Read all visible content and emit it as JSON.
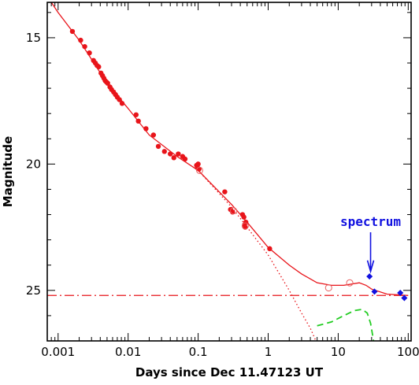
{
  "chart_data": {
    "type": "scatter",
    "title": "",
    "xlabel": "Days since Dec 11.47123 UT",
    "ylabel": "Magnitude",
    "xscale": "log",
    "xlim": [
      0.0007,
      110
    ],
    "ylim": [
      27,
      13.6
    ],
    "y_inverted": true,
    "grid": false,
    "xticks": [
      {
        "value": 0.001,
        "label": "0.001"
      },
      {
        "value": 0.01,
        "label": "0.01"
      },
      {
        "value": 0.1,
        "label": "0.1"
      },
      {
        "value": 1,
        "label": "1"
      },
      {
        "value": 10,
        "label": "10"
      },
      {
        "value": 100,
        "label": "100"
      }
    ],
    "yticks": [
      {
        "value": 15,
        "label": "15"
      },
      {
        "value": 20,
        "label": "20"
      },
      {
        "value": 25,
        "label": "25"
      }
    ],
    "colors": {
      "afterglow": "#e8141a",
      "open": "#e86060",
      "blue": "#1010e0",
      "green": "#22cc22"
    },
    "series": [
      {
        "marker": "filled-circle",
        "color": "#e8141a",
        "points": [
          [
            0.0016,
            14.75
          ],
          [
            0.0021,
            15.1
          ],
          [
            0.0024,
            15.35
          ],
          [
            0.0028,
            15.6
          ],
          [
            0.0032,
            15.9
          ],
          [
            0.0034,
            16.0
          ],
          [
            0.0036,
            16.1
          ],
          [
            0.0038,
            16.15
          ],
          [
            0.0041,
            16.4
          ],
          [
            0.0043,
            16.5
          ],
          [
            0.0045,
            16.6
          ],
          [
            0.0047,
            16.7
          ],
          [
            0.0049,
            16.75
          ],
          [
            0.0051,
            16.8
          ],
          [
            0.0055,
            16.95
          ],
          [
            0.0058,
            17.05
          ],
          [
            0.0062,
            17.15
          ],
          [
            0.0066,
            17.25
          ],
          [
            0.007,
            17.35
          ],
          [
            0.0075,
            17.45
          ],
          [
            0.0082,
            17.6
          ],
          [
            0.013,
            18.05
          ],
          [
            0.014,
            18.3
          ],
          [
            0.018,
            18.6
          ],
          [
            0.023,
            18.85
          ],
          [
            0.027,
            19.3
          ],
          [
            0.033,
            19.5
          ],
          [
            0.04,
            19.6
          ],
          [
            0.045,
            19.75
          ],
          [
            0.052,
            19.6
          ],
          [
            0.06,
            19.7
          ],
          [
            0.065,
            19.8
          ],
          [
            0.095,
            20.05
          ],
          [
            0.098,
            20.15
          ],
          [
            0.1,
            20.0
          ],
          [
            0.103,
            20.2
          ],
          [
            0.24,
            21.1
          ],
          [
            0.29,
            21.8
          ],
          [
            0.31,
            21.9
          ],
          [
            0.43,
            22.0
          ],
          [
            0.45,
            22.1
          ],
          [
            0.46,
            22.4
          ],
          [
            0.47,
            22.5
          ],
          [
            0.48,
            22.3
          ],
          [
            1.05,
            23.35
          ]
        ]
      },
      {
        "marker": "open-circle",
        "color": "#e86060",
        "points": [
          [
            0.105,
            20.25
          ],
          [
            0.32,
            21.85
          ],
          [
            0.47,
            22.45
          ],
          [
            7.3,
            24.9
          ],
          [
            14.6,
            24.7
          ]
        ]
      },
      {
        "marker": "filled-diamond",
        "color": "#1010e0",
        "points": [
          [
            28.0,
            24.45
          ],
          [
            33.0,
            25.05
          ],
          [
            77.0,
            25.1
          ],
          [
            88.0,
            25.3
          ]
        ]
      }
    ],
    "curves": [
      {
        "style": "solid",
        "color": "#e8141a",
        "points": [
          [
            0.0008,
            13.6
          ],
          [
            0.001,
            14.0
          ],
          [
            0.002,
            15.1
          ],
          [
            0.005,
            16.8
          ],
          [
            0.01,
            17.8
          ],
          [
            0.02,
            18.85
          ],
          [
            0.05,
            19.7
          ],
          [
            0.1,
            20.25
          ],
          [
            0.2,
            21.1
          ],
          [
            0.3,
            21.6
          ],
          [
            0.5,
            22.3
          ],
          [
            1.0,
            23.3
          ],
          [
            2.0,
            24.0
          ],
          [
            3.0,
            24.35
          ],
          [
            5.0,
            24.7
          ],
          [
            8.0,
            24.8
          ],
          [
            12.0,
            24.8
          ],
          [
            20.0,
            24.7
          ],
          [
            25.0,
            24.8
          ],
          [
            30.0,
            24.95
          ],
          [
            50.0,
            25.15
          ],
          [
            100.0,
            25.2
          ]
        ]
      },
      {
        "style": "dotted",
        "color": "#e8141a",
        "points": [
          [
            0.1,
            20.25
          ],
          [
            0.3,
            21.7
          ],
          [
            0.5,
            22.5
          ],
          [
            1.0,
            23.6
          ],
          [
            2.0,
            25.0
          ],
          [
            3.0,
            25.9
          ],
          [
            4.0,
            26.5
          ],
          [
            4.8,
            27.0
          ]
        ]
      },
      {
        "style": "dash-dot",
        "color": "#e8141a",
        "points": [
          [
            0.0007,
            25.2
          ],
          [
            110,
            25.2
          ]
        ]
      },
      {
        "style": "dashed",
        "color": "#22cc22",
        "points": [
          [
            5.0,
            26.4
          ],
          [
            8.0,
            26.25
          ],
          [
            12.0,
            26.0
          ],
          [
            17.0,
            25.8
          ],
          [
            22.0,
            25.75
          ],
          [
            26.0,
            25.9
          ],
          [
            29.0,
            26.3
          ],
          [
            32.0,
            27.0
          ]
        ]
      }
    ],
    "annotations": [
      {
        "text": "spectrum",
        "x": 29.0,
        "y": 22.7,
        "arrow_to": [
          29.0,
          24.25
        ],
        "color": "#1010e0"
      }
    ]
  }
}
